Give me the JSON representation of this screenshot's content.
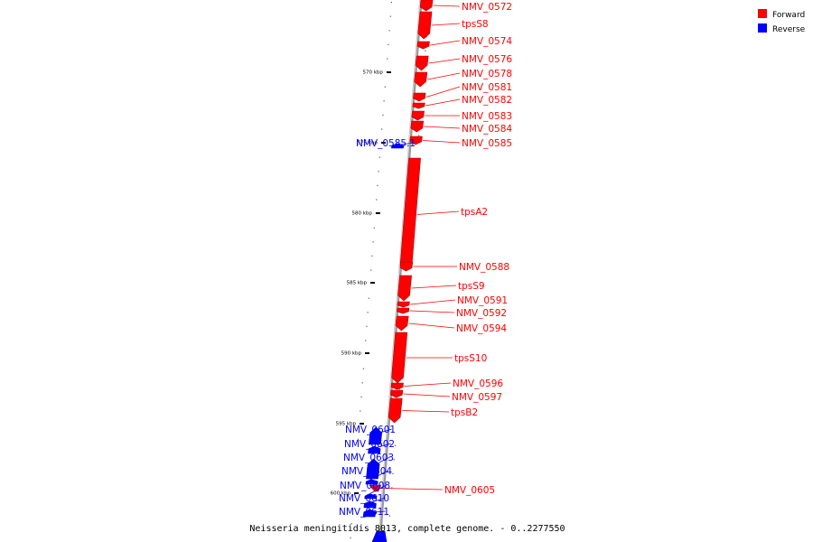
{
  "legend": {
    "items": [
      {
        "label": "Forward",
        "color": "#ff0000"
      },
      {
        "label": "Reverse",
        "color": "#0000ff"
      }
    ]
  },
  "caption": "Neisseria meningitidis 8013, complete genome. - 0..2277550",
  "ticks": [
    "570 kbp",
    "575 kbp",
    "580 kbp",
    "585 kbp",
    "590 kbp",
    "595 kbp",
    "600 kbp"
  ],
  "genes": [
    {
      "name": "NMV_0572",
      "strand": "forward"
    },
    {
      "name": "tpsS8",
      "strand": "forward"
    },
    {
      "name": "NMV_0574",
      "strand": "forward"
    },
    {
      "name": "NMV_0576",
      "strand": "forward"
    },
    {
      "name": "NMV_0578",
      "strand": "forward"
    },
    {
      "name": "NMV_0581",
      "strand": "forward"
    },
    {
      "name": "NMV_0582",
      "strand": "forward"
    },
    {
      "name": "NMV_0583",
      "strand": "forward"
    },
    {
      "name": "NMV_0584",
      "strand": "forward"
    },
    {
      "name": "NMV_0585",
      "strand": "forward"
    },
    {
      "name": "NMV_0585.1",
      "strand": "reverse"
    },
    {
      "name": "tpsA2",
      "strand": "forward"
    },
    {
      "name": "NMV_0588",
      "strand": "forward"
    },
    {
      "name": "tpsS9",
      "strand": "forward"
    },
    {
      "name": "NMV_0591",
      "strand": "forward"
    },
    {
      "name": "NMV_0592",
      "strand": "forward"
    },
    {
      "name": "NMV_0594",
      "strand": "forward"
    },
    {
      "name": "tpsS10",
      "strand": "forward"
    },
    {
      "name": "NMV_0596",
      "strand": "forward"
    },
    {
      "name": "NMV_0597",
      "strand": "forward"
    },
    {
      "name": "tpsB2",
      "strand": "forward"
    },
    {
      "name": "NMV_0601",
      "strand": "reverse"
    },
    {
      "name": "NMV_0602",
      "strand": "reverse"
    },
    {
      "name": "NMV_0603",
      "strand": "reverse"
    },
    {
      "name": "NMV_0604",
      "strand": "reverse"
    },
    {
      "name": "NMV_0605",
      "strand": "forward"
    },
    {
      "name": "NMV_0608",
      "strand": "reverse"
    },
    {
      "name": "NMV_0610",
      "strand": "reverse"
    },
    {
      "name": "NMV_0611",
      "strand": "reverse"
    }
  ]
}
